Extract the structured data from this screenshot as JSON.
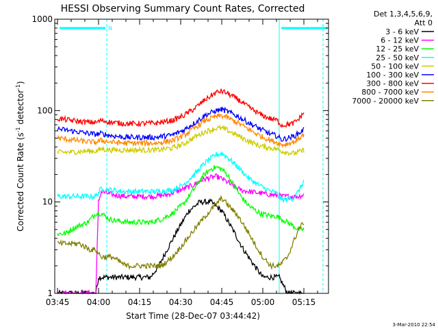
{
  "chart_data": {
    "type": "line",
    "title": "HESSI Observing Summary Count Rates, Corrected",
    "xlabel": "Start Time (28-Dec-07 03:44:42)",
    "ylabel_main": "Corrected Count Rate (s",
    "ylabel_sup1": "-1",
    "ylabel_mid": " detector",
    "ylabel_sup2": "-1",
    "ylabel_end": ")",
    "yscale": "log",
    "xlim_minutes": [
      -1,
      99
    ],
    "ylim": [
      1,
      1000
    ],
    "x_tick_labels": [
      "03:45",
      "04:00",
      "04:15",
      "04:30",
      "04:45",
      "05:00",
      "05:15"
    ],
    "x_tick_minutes": [
      0,
      15,
      30,
      45,
      60,
      75,
      90
    ],
    "y_tick_labels": [
      "1",
      "10",
      "100",
      "1000"
    ],
    "y_tick_values": [
      1,
      10,
      100,
      1000
    ],
    "legend_header": [
      "Det 1,3,4,5,6,9,",
      "Att 0"
    ],
    "legend_position": "right",
    "night_marker_label": "N",
    "night_intervals_minutes": [
      [
        0,
        18
      ],
      [
        81,
        99
      ]
    ],
    "dashed_boundaries_minutes": [
      18,
      81,
      97
    ],
    "footer_timestamp": "3-Mar-2010 22:54",
    "series": [
      {
        "name": "3 - 6 keV",
        "color": "#000000",
        "x": [
          0,
          10,
          14,
          15,
          18,
          22,
          26,
          30,
          34,
          37,
          40,
          44,
          48,
          52,
          56,
          60,
          64,
          68,
          72,
          75,
          78,
          81,
          84,
          88,
          90
        ],
        "values": [
          1,
          1,
          1,
          1.5,
          1.5,
          1.5,
          1.5,
          1.5,
          1.5,
          2,
          3,
          5,
          8,
          10,
          10,
          8,
          5,
          3,
          2,
          1.5,
          1.5,
          1.5,
          1,
          1,
          1
        ]
      },
      {
        "name": "6 - 12 keV",
        "color": "#ff00ff",
        "x": [
          0,
          5,
          10,
          14,
          15,
          16,
          20,
          25,
          30,
          35,
          40,
          45,
          50,
          53,
          56,
          58,
          60,
          62,
          64,
          67,
          70,
          74,
          78,
          82,
          86,
          88,
          90
        ],
        "values": [
          1,
          1,
          1,
          1,
          10,
          13,
          12,
          11.5,
          11.5,
          11.5,
          12,
          13.5,
          15.5,
          17.5,
          18.5,
          19,
          18,
          16.5,
          15,
          13.5,
          13,
          12.5,
          12,
          11.5,
          11.5,
          11.5,
          12
        ]
      },
      {
        "name": "12 - 25 keV",
        "color": "#00ff00",
        "x": [
          0,
          3,
          5,
          8,
          11,
          14,
          16,
          19,
          22,
          26,
          30,
          34,
          38,
          42,
          46,
          50,
          53,
          56,
          58,
          60,
          62,
          64,
          67,
          70,
          74,
          78,
          80,
          82,
          86,
          88,
          90
        ],
        "values": [
          4.5,
          4.5,
          5,
          5.5,
          6,
          7.5,
          7.5,
          6.5,
          6.2,
          6,
          6,
          6,
          6.5,
          7.5,
          9.5,
          14,
          19,
          23,
          24,
          23,
          20,
          16,
          11.5,
          9,
          7.5,
          7,
          7,
          6.5,
          5.5,
          5,
          5
        ]
      },
      {
        "name": "25 - 50 keV",
        "color": "#00ffff",
        "x": [
          0,
          10,
          14,
          16,
          20,
          24,
          30,
          36,
          42,
          46,
          50,
          54,
          58,
          60,
          62,
          66,
          70,
          74,
          78,
          80,
          82,
          86,
          88,
          90
        ],
        "values": [
          11.5,
          11.5,
          11.5,
          14,
          13.5,
          13,
          13,
          13,
          13.5,
          15.5,
          20,
          27,
          33,
          34,
          31,
          24,
          18,
          15,
          13,
          12.5,
          10.5,
          11,
          13,
          17
        ]
      },
      {
        "name": "50 - 100 keV",
        "color": "#cccc00",
        "x": [
          0,
          5,
          10,
          14,
          16,
          20,
          25,
          30,
          36,
          42,
          46,
          50,
          54,
          58,
          60,
          62,
          66,
          70,
          74,
          78,
          80,
          82,
          86,
          88,
          90
        ],
        "values": [
          35,
          35,
          36,
          36,
          38,
          37,
          37,
          37,
          37,
          39,
          43,
          51,
          59,
          64,
          64,
          61,
          53,
          46,
          41,
          39,
          38,
          36,
          34,
          35,
          37
        ]
      },
      {
        "name": "100 - 300 keV",
        "color": "#0000ff",
        "x": [
          0,
          5,
          10,
          14,
          16,
          20,
          25,
          30,
          36,
          42,
          46,
          50,
          54,
          58,
          60,
          62,
          66,
          70,
          74,
          78,
          80,
          82,
          86,
          88,
          90
        ],
        "values": [
          63,
          60,
          57,
          55,
          56,
          53,
          51,
          51,
          51,
          54,
          61,
          73,
          89,
          100,
          103,
          98,
          86,
          73,
          63,
          55,
          53,
          48,
          52,
          56,
          62
        ]
      },
      {
        "name": "300 - 800 keV",
        "color": "#ff0000",
        "x": [
          0,
          5,
          10,
          14,
          16,
          20,
          25,
          30,
          36,
          42,
          46,
          50,
          54,
          58,
          60,
          62,
          66,
          70,
          74,
          78,
          80,
          82,
          86,
          88,
          90
        ],
        "values": [
          82,
          78,
          75,
          74,
          78,
          74,
          72,
          72,
          73,
          78,
          88,
          105,
          132,
          158,
          163,
          155,
          132,
          108,
          91,
          81,
          79,
          69,
          72,
          80,
          95
        ]
      },
      {
        "name": "800 - 7000 keV",
        "color": "#ff8800",
        "x": [
          0,
          5,
          10,
          14,
          16,
          20,
          25,
          30,
          36,
          42,
          46,
          50,
          54,
          58,
          60,
          62,
          66,
          70,
          74,
          78,
          80,
          82,
          86,
          88,
          90
        ],
        "values": [
          50,
          48,
          46,
          45,
          47,
          45,
          44,
          44,
          44,
          47,
          53,
          64,
          78,
          86,
          88,
          84,
          73,
          62,
          53,
          47,
          45,
          42,
          45,
          49,
          55
        ]
      },
      {
        "name": "7000 - 20000 keV",
        "color": "#808000",
        "x": [
          0,
          4,
          8,
          12,
          14,
          16,
          20,
          25,
          30,
          34,
          38,
          42,
          46,
          50,
          54,
          58,
          60,
          62,
          66,
          70,
          72,
          75,
          78,
          81,
          84,
          86,
          88,
          90
        ],
        "values": [
          3.5,
          3.5,
          3.5,
          3,
          3,
          2.5,
          2.5,
          2,
          2,
          2,
          2,
          2.5,
          3.5,
          5,
          7,
          9.5,
          11,
          9.5,
          7,
          4.5,
          3.5,
          2.5,
          2,
          2,
          2.5,
          3.5,
          5,
          6
        ]
      }
    ]
  }
}
